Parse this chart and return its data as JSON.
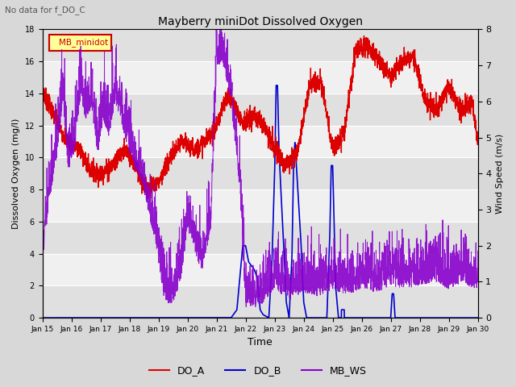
{
  "title": "Mayberry miniDot Dissolved Oxygen",
  "subtitle": "No data for f_DO_C",
  "xlabel": "Time",
  "ylabel_left": "Dissolved Oxygen (mg/l)",
  "ylabel_right": "Wind Speed (m/s)",
  "ylim_left": [
    0,
    18
  ],
  "ylim_right": [
    0.0,
    8.0
  ],
  "yticks_left": [
    0,
    2,
    4,
    6,
    8,
    10,
    12,
    14,
    16,
    18
  ],
  "yticks_right": [
    0.0,
    1.0,
    2.0,
    3.0,
    4.0,
    5.0,
    6.0,
    7.0,
    8.0
  ],
  "xtick_labels": [
    "Jan 15",
    "Jan 16",
    "Jan 17",
    "Jan 18",
    "Jan 19",
    "Jan 20",
    "Jan 21",
    "Jan 22",
    "Jan 23",
    "Jan 24",
    "Jan 25",
    "Jan 26",
    "Jan 27",
    "Jan 28",
    "Jan 29",
    "Jan 30"
  ],
  "legend_box_label": "MB_minidot",
  "legend_box_color": "#cc0000",
  "legend_entries": [
    "DO_A",
    "DO_B",
    "MB_WS"
  ],
  "color_do_a": "#dd0000",
  "color_do_b": "#0000cc",
  "color_mb_ws": "#8800cc",
  "bg_color": "#d8d8d8",
  "plot_bg_color": "#f0f0f0",
  "stripe_color": "#e0e0e0",
  "grid_color": "#ffffff"
}
